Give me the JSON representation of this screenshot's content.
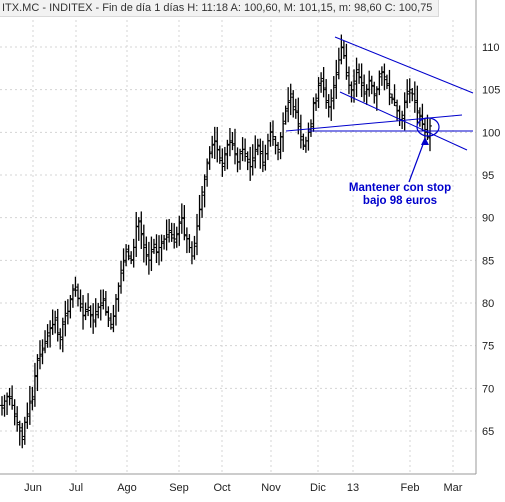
{
  "header": {
    "ticker": "ITX.MC",
    "name": "INDITEX",
    "period": "Fin de día 1 días",
    "time_label": "H:",
    "time": "11:18",
    "open_label": "A:",
    "open": "100,60",
    "high_label": "M:",
    "high": "101,15",
    "low_label": "m:",
    "low": "98,60",
    "close_label": "C:",
    "close": "100,75"
  },
  "annotation": {
    "line1": "Mantener con stop",
    "line2": "bajo 98 euros"
  },
  "colors": {
    "bars": "#000000",
    "trendlines": "#0000cc",
    "annotation_text": "#0000cc",
    "grid": "#d4d4d4",
    "background": "#ffffff"
  },
  "chart_data": {
    "type": "ohlc",
    "title": "ITX.MC - INDITEX",
    "xlabel": "",
    "ylabel": "",
    "ylim": [
      60,
      114
    ],
    "y_ticks": [
      65,
      70,
      75,
      80,
      85,
      90,
      95,
      100,
      105,
      110
    ],
    "x_ticks": [
      "Jun",
      "Jul",
      "Ago",
      "Sep",
      "Oct",
      "Nov",
      "Dic",
      "13",
      "Feb",
      "Mar"
    ],
    "grid": true,
    "y_axis_side": "right",
    "closes_daily": [
      68.0,
      68.5,
      69.0,
      68.8,
      68.0,
      67.0,
      66.0,
      65.0,
      64.0,
      66.0,
      67.0,
      68.5,
      69.0,
      71.5,
      73.5,
      74.0,
      74.5,
      75.5,
      76.5,
      77.0,
      77.5,
      78.0,
      76.5,
      76.0,
      77.5,
      78.5,
      79.0,
      80.5,
      81.5,
      81.5,
      80.5,
      79.5,
      78.5,
      79.0,
      79.5,
      78.5,
      78.0,
      79.0,
      79.5,
      80.0,
      80.5,
      79.0,
      78.0,
      77.5,
      78.5,
      80.5,
      82.0,
      83.5,
      85.0,
      86.0,
      85.5,
      85.0,
      86.5,
      89.0,
      89.5,
      88.0,
      86.5,
      85.5,
      85.0,
      86.0,
      86.5,
      86.0,
      86.5,
      87.0,
      87.5,
      88.0,
      88.5,
      88.0,
      87.5,
      88.0,
      89.5,
      90.0,
      88.0,
      87.5,
      86.5,
      85.5,
      87.0,
      89.0,
      91.0,
      93.0,
      94.5,
      96.5,
      97.5,
      98.5,
      99.0,
      98.0,
      97.0,
      96.0,
      97.5,
      98.5,
      99.0,
      98.5,
      97.5,
      96.5,
      97.5,
      98.0,
      97.5,
      96.5,
      96.0,
      97.0,
      98.0,
      98.5,
      97.5,
      96.5,
      97.5,
      99.0,
      100.0,
      99.5,
      98.5,
      98.0,
      99.5,
      101.0,
      102.5,
      103.5,
      104.5,
      103.0,
      102.5,
      101.0,
      99.5,
      98.5,
      99.0,
      100.0,
      101.0,
      103.5,
      104.0,
      105.5,
      106.0,
      105.0,
      103.5,
      103.0,
      104.0,
      105.5,
      107.0,
      108.5,
      110.0,
      109.0,
      107.0,
      105.5,
      105.0,
      106.0,
      107.0,
      106.5,
      105.5,
      104.5,
      105.0,
      106.0,
      105.5,
      104.5,
      105.0,
      106.5,
      107.0,
      106.5,
      105.5,
      104.5,
      104.0,
      103.5,
      102.5,
      101.5,
      102.0,
      103.5,
      104.5,
      105.0,
      104.5,
      103.5,
      102.5,
      102.0,
      101.0,
      100.0,
      99.5,
      100.75
    ],
    "trendlines": [
      {
        "name": "channel-top",
        "from": [
          110.5,
          "Dic"
        ],
        "to": [
          104.0,
          "Mar"
        ]
      },
      {
        "name": "channel-bottom",
        "from": [
          103.0,
          "Dic"
        ],
        "to": [
          96.0,
          "Mar"
        ]
      },
      {
        "name": "stop-line",
        "level": 98
      }
    ],
    "annotation_target": 98
  }
}
